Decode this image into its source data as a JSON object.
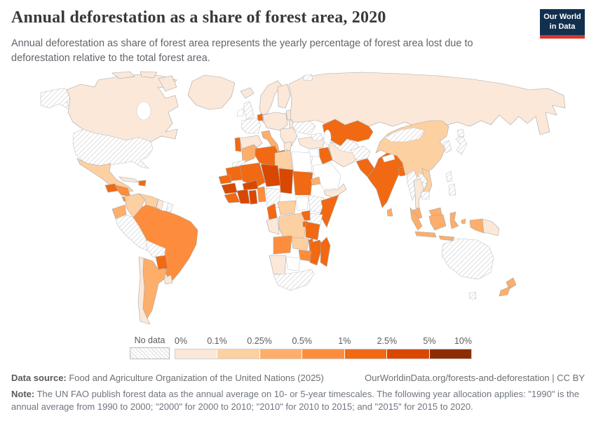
{
  "header": {
    "title": "Annual deforestation as a share of forest area, 2020",
    "subtitle": "Annual deforestation as share of forest area represents the yearly percentage of forest area lost due to deforestation relative to the total forest area.",
    "logo": {
      "line1": "Our World",
      "line2": "in Data",
      "bg_color": "#12304e",
      "accent_color": "#d7382d"
    }
  },
  "legend": {
    "no_data_label": "No data",
    "tick_labels": [
      "0%",
      "0.1%",
      "0.25%",
      "0.5%",
      "1%",
      "2.5%",
      "5%",
      "10%"
    ]
  },
  "footer": {
    "datasource_label": "Data source:",
    "datasource_text": " Food and Agriculture Organization of the United Nations (2025)",
    "link_text": "OurWorldinData.org/forests-and-deforestation | CC BY",
    "note_label": "Note:",
    "note_text": " The UN FAO publish forest data as the annual average on 10- or 5-year timescales. The following year allocation applies: \"1990\" is the annual average from 1990 to 2000; \"2000\" for 2000 to 2010; \"2010\" for 2010 to 2015; and \"2015\" for 2015 to 2020."
  },
  "chart_data": {
    "type": "choropleth",
    "title": "Annual deforestation as a share of forest area, 2020",
    "unit": "%",
    "legend_position": "bottom",
    "no_data_style": "diagonal-hatch",
    "zero_fill_color": "#ffffff",
    "bins": [
      {
        "label": "0–0.1%",
        "color": "#fbe8d9"
      },
      {
        "label": "0.1–0.25%",
        "color": "#fdd0a2"
      },
      {
        "label": "0.25–0.5%",
        "color": "#fdae6b"
      },
      {
        "label": "0.5–1%",
        "color": "#fd8d3c"
      },
      {
        "label": "1–2.5%",
        "color": "#f16913"
      },
      {
        "label": "2.5–5%",
        "color": "#d94801"
      },
      {
        "label": "5–10%",
        "color": "#8c2d04"
      }
    ],
    "countries": {
      "Canada": "0–0.1%",
      "Greenland": "0–0.1%",
      "United States": "No data",
      "Mexico": "0.1–0.25%",
      "Guatemala": "1–2.5%",
      "Honduras & Nicaragua": "0.5–1%",
      "Costa Rica & Panama": "0.5–1%",
      "Cuba": "0–0.1%",
      "Dominican Republic": "1–2.5%",
      "Colombia": "0.1–0.25%",
      "Venezuela": "0.1–0.25%",
      "Guyana": "0–0.1%",
      "Suriname": "0%",
      "French Guiana": "No data",
      "Ecuador": "0.25–0.5%",
      "Peru": "No data",
      "Brazil": "0.5–1%",
      "Bolivia": "No data",
      "Paraguay": "1–2.5%",
      "Argentina": "0.25–0.5%",
      "Chile": "0–0.1%",
      "Uruguay": "0–0.1%",
      "Iceland": "0–0.1%",
      "United Kingdom": "No data",
      "Ireland": "0%",
      "Norway & Sweden": "0–0.1%",
      "Finland": "0–0.1%",
      "Denmark": "0–0.1%",
      "Baltic states": "0–0.1%",
      "Belarus": "0–0.1%",
      "Netherlands": "1–2.5%",
      "Germany & Central Europe": "0–0.1%",
      "France": "No data",
      "Spain": "0–0.1%",
      "Portugal": "1–2.5%",
      "Italy": "0.25–0.5%",
      "Balkans": "0–0.1%",
      "Greece": "0–0.1%",
      "Ukraine": "No data",
      "Russia": "0–0.1%",
      "Svalbard": "No data",
      "Turkey": "0–0.1%",
      "Syria": "0%",
      "Jordan": "0%",
      "Iraq": "1–2.5%",
      "Saudi Arabia": "0%",
      "Yemen & Oman": "0–0.1%",
      "Iran": "0–0.1%",
      "Caucasus": "No data",
      "Kazakhstan": "1–2.5%",
      "Central Asia": "No data",
      "Afghanistan": "No data",
      "Pakistan": "1–2.5%",
      "India": "1–2.5%",
      "Nepal": "0%",
      "Sri Lanka": "0.25–0.5%",
      "Bangladesh": "1–2.5%",
      "China": "0.1–0.25%",
      "Mongolia": "No data",
      "South Korea": "No data",
      "Japan": "No data",
      "Myanmar": "No data",
      "Thailand": "0–0.1%",
      "Laos": "No data",
      "Vietnam": "0.1–0.25%",
      "Cambodia": "No data",
      "Philippines": "No data",
      "Malaysia": "0.25–0.5%",
      "Indonesia": "0.25–0.5%",
      "Papua New Guinea": "0–0.1%",
      "Australia": "No data",
      "New Zealand": "0.25–0.5%",
      "Morocco": "0.25–0.5%",
      "Western Sahara": "No data",
      "Algeria": "1–2.5%",
      "Tunisia": "1–2.5%",
      "Libya": "0.1–0.25%",
      "Egypt": "0%",
      "Mauritania": "1–2.5%",
      "Mali": "1–2.5%",
      "Burkina Faso": "2.5–5%",
      "Niger": "2.5–5%",
      "Chad": "2.5–5%",
      "Sudan": "1–2.5%",
      "Eritrea": "0.25–0.5%",
      "Senegal": "1–2.5%",
      "Guinea": "2.5–5%",
      "Sierra Leone & Liberia": "1–2.5%",
      "Côte d'Ivoire": "2.5–5%",
      "Ghana": "2.5–5%",
      "Togo & Benin": "0.5–1%",
      "Nigeria": "No data",
      "Cameroon": "1–2.5%",
      "Central African Republic": "0.1–0.25%",
      "South Sudan": "0%",
      "Ethiopia": "No data",
      "Somalia": "1–2.5%",
      "Kenya": "No data",
      "Uganda": "1–2.5%",
      "DR Congo": "0.1–0.25%",
      "Gabon & Congo": "0–0.1%",
      "Rwanda & Burundi": "1–2.5%",
      "Tanzania": "1–2.5%",
      "Angola": "0.5–1%",
      "Zambia": "0.1–0.25%",
      "Malawi": "1–2.5%",
      "Mozambique": "1–2.5%",
      "Zimbabwe": "0.5–1%",
      "Namibia": "0–0.1%",
      "Botswana": "0%",
      "South Africa": "No data",
      "Madagascar": "1–2.5%"
    }
  }
}
